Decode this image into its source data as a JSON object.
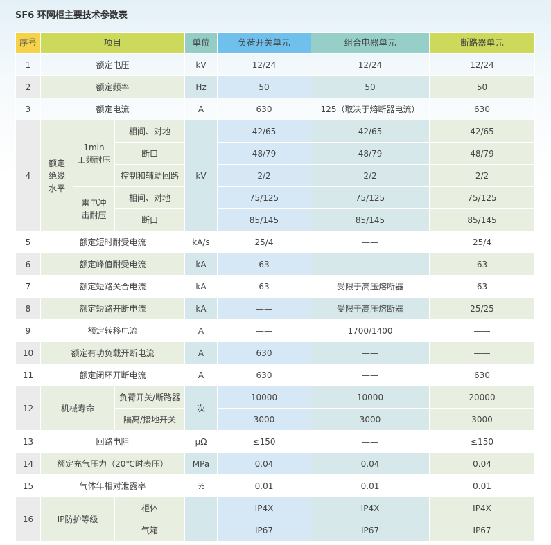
{
  "title": "SF6 环网柜主要技术参数表",
  "header": [
    "序号",
    "项目",
    "单位",
    "负荷开关单元",
    "组合电器单元",
    "断路器单元"
  ],
  "header_colors": [
    "#f6d24a",
    "#cdd95a",
    "#93cdc6",
    "#70c0ed",
    "#95cfc8",
    "#cdd95a"
  ],
  "rows": [
    {
      "no": "1",
      "item": "额定电压",
      "unit": "kV",
      "values": [
        "12/24",
        "12/24",
        "12/24"
      ]
    },
    {
      "no": "2",
      "item": "额定频率",
      "unit": "Hz",
      "values": [
        "50",
        "50",
        "50"
      ]
    },
    {
      "no": "3",
      "item": "额定电流",
      "unit": "A",
      "values": [
        "630",
        "125（取决于熔断器电流）",
        "630"
      ]
    },
    {
      "no": "4",
      "item": "额定\n绝缘\n水平",
      "unit": "kV",
      "groups": [
        {
          "name": "1min\n工频耐压",
          "subitems": [
            {
              "name": "相间、对地",
              "values": [
                "42/65",
                "42/65",
                "42/65"
              ]
            },
            {
              "name": "断口",
              "values": [
                "48/79",
                "48/79",
                "48/79"
              ]
            },
            {
              "name": "控制和辅助回路",
              "values": [
                "2/2",
                "2/2",
                "2/2"
              ]
            }
          ]
        },
        {
          "name": "雷电冲\n击耐压",
          "subitems": [
            {
              "name": "相间、对地",
              "values": [
                "75/125",
                "75/125",
                "75/125"
              ]
            },
            {
              "name": "断口",
              "values": [
                "85/145",
                "85/145",
                "85/145"
              ]
            }
          ]
        }
      ]
    },
    {
      "no": "5",
      "item": "额定短时耐受电流",
      "unit": "kA/s",
      "values": [
        "25/4",
        "——",
        "25/4"
      ]
    },
    {
      "no": "6",
      "item": "额定峰值耐受电流",
      "unit": "kA",
      "values": [
        "63",
        "——",
        "63"
      ]
    },
    {
      "no": "7",
      "item": "额定短路关合电流",
      "unit": "kA",
      "values": [
        "63",
        "受限于高压熔断器",
        "63"
      ]
    },
    {
      "no": "8",
      "item": "额定短路开断电流",
      "unit": "kA",
      "values": [
        "——",
        "受限于高压熔断器",
        "25/25"
      ]
    },
    {
      "no": "9",
      "item": "额定转移电流",
      "unit": "A",
      "values": [
        "——",
        "1700/1400",
        "——"
      ]
    },
    {
      "no": "10",
      "item": "额定有功负载开断电流",
      "unit": "A",
      "values": [
        "630",
        "——",
        "——"
      ]
    },
    {
      "no": "11",
      "item": "额定闭环开断电流",
      "unit": "A",
      "values": [
        "630",
        "——",
        "630"
      ]
    },
    {
      "no": "12",
      "item": "机械寿命",
      "unit": "次",
      "subitems": [
        {
          "name": "负荷开关/断路器",
          "values": [
            "10000",
            "10000",
            "20000"
          ]
        },
        {
          "name": "隔离/接地开关",
          "values": [
            "3000",
            "3000",
            "3000"
          ]
        }
      ]
    },
    {
      "no": "13",
      "item": "回路电阻",
      "unit": "μΩ",
      "values": [
        "≤150",
        "——",
        "≤150"
      ]
    },
    {
      "no": "14",
      "item": "额定充气压力（20℃时表压）",
      "unit": "MPa",
      "values": [
        "0.04",
        "0.04",
        "0.04"
      ]
    },
    {
      "no": "15",
      "item": "气体年相对泄露率",
      "unit": "%",
      "values": [
        "0.01",
        "0.01",
        "0.01"
      ]
    },
    {
      "no": "16",
      "item": "IP防护等级",
      "unit": "",
      "subitems": [
        {
          "name": "柜体",
          "values": [
            "IP4X",
            "IP4X",
            "IP4X"
          ]
        },
        {
          "name": "气箱",
          "values": [
            "IP67",
            "IP67",
            "IP67"
          ]
        }
      ]
    }
  ]
}
